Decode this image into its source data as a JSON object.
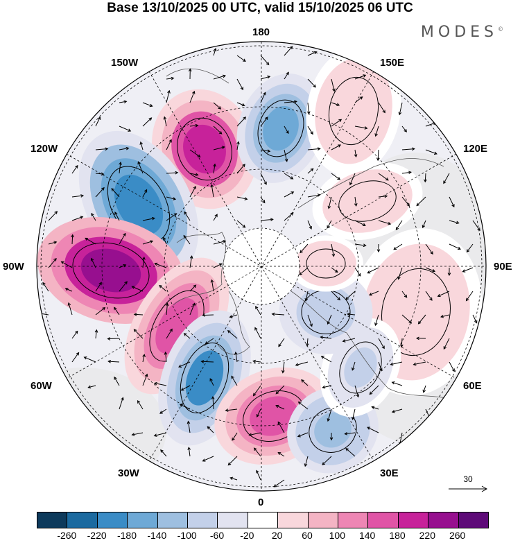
{
  "title": "Base 13/10/2025 00 UTC, valid 15/10/2025 06 UTC",
  "brand": "MODES",
  "brand_mark": "©",
  "longitude_labels": {
    "top": "180",
    "top_left": "150W",
    "top_right": "150E",
    "upper_left": "120W",
    "upper_right": "120E",
    "left": "90W",
    "right": "90E",
    "lower_left": "60W",
    "lower_right": "60E",
    "bottom_left": "30W",
    "bottom_right": "30E",
    "bottom": "0"
  },
  "wind_reference": {
    "value": "30"
  },
  "colorbar": {
    "colors": [
      "#0d3a5c",
      "#1b6aa0",
      "#3a8cc6",
      "#6ea9d6",
      "#9ebfe0",
      "#c3d0e9",
      "#e2e3f0",
      "#ffffff",
      "#f9d7dc",
      "#f4b4c4",
      "#ee86b4",
      "#e054a6",
      "#c7229a",
      "#970f8f",
      "#5e0a78"
    ],
    "ticks": [
      "-260",
      "-220",
      "-180",
      "-140",
      "-100",
      "-60",
      "-20",
      "20",
      "60",
      "100",
      "140",
      "180",
      "220",
      "260"
    ]
  },
  "anomalies": [
    {
      "name": "anom-pos-150w",
      "value": 200
    },
    {
      "name": "anom-neg-180",
      "value": -140
    },
    {
      "name": "anom-neg-120w",
      "value": -200
    },
    {
      "name": "anom-pos-90w",
      "value": 250
    },
    {
      "name": "anom-pos-70w",
      "value": 160
    },
    {
      "name": "anom-neg-50w",
      "value": -180
    },
    {
      "name": "anom-pos-20w",
      "value": 180
    },
    {
      "name": "anom-neg-30e",
      "value": -120
    },
    {
      "name": "anom-pos-150e",
      "value": 60
    },
    {
      "name": "anom-pos-100e",
      "value": 60
    },
    {
      "name": "anom-pos-70e",
      "value": 60
    },
    {
      "name": "anom-neg-60e",
      "value": -60
    },
    {
      "name": "anom-neg-40e",
      "value": -80
    },
    {
      "name": "anom-pos-110e",
      "value": 60
    }
  ]
}
